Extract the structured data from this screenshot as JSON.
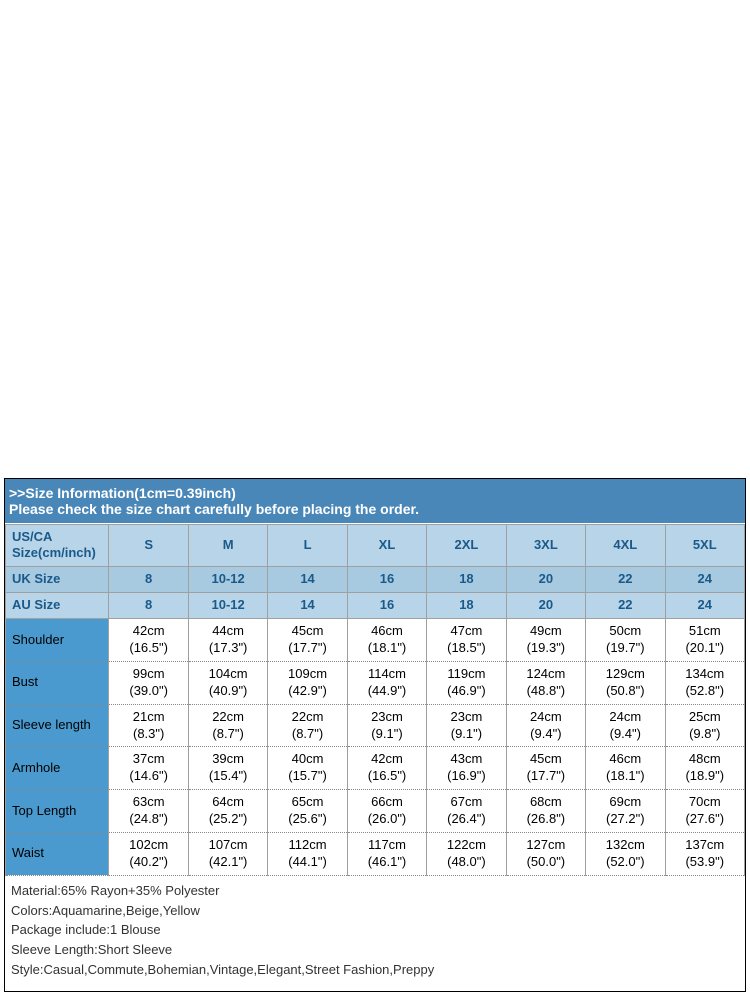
{
  "header": {
    "line1": ">>Size Information(1cm=0.39inch)",
    "line2": "Please check the size chart carefully before placing the order."
  },
  "sizes": [
    "S",
    "M",
    "L",
    "XL",
    "2XL",
    "3XL",
    "4XL",
    "5XL"
  ],
  "labelMain": "US/CA Size(cm/inch)",
  "labelUK": "UK Size",
  "labelAU": "AU Size",
  "uk": [
    "8",
    "10-12",
    "14",
    "16",
    "18",
    "20",
    "22",
    "24"
  ],
  "au": [
    "8",
    "10-12",
    "14",
    "16",
    "18",
    "20",
    "22",
    "24"
  ],
  "rows": [
    {
      "label": "Shoulder",
      "cm": [
        "42cm",
        "44cm",
        "45cm",
        "46cm",
        "47cm",
        "49cm",
        "50cm",
        "51cm"
      ],
      "in": [
        "(16.5\")",
        "(17.3\")",
        "(17.7\")",
        "(18.1\")",
        "(18.5\")",
        "(19.3\")",
        "(19.7\")",
        "(20.1\")"
      ]
    },
    {
      "label": "Bust",
      "cm": [
        "99cm",
        "104cm",
        "109cm",
        "114cm",
        "119cm",
        "124cm",
        "129cm",
        "134cm"
      ],
      "in": [
        "(39.0\")",
        "(40.9\")",
        "(42.9\")",
        "(44.9\")",
        "(46.9\")",
        "(48.8\")",
        "(50.8\")",
        "(52.8\")"
      ]
    },
    {
      "label": "Sleeve length",
      "cm": [
        "21cm",
        "22cm",
        "22cm",
        "23cm",
        "23cm",
        "24cm",
        "24cm",
        "25cm"
      ],
      "in": [
        "(8.3\")",
        "(8.7\")",
        "(8.7\")",
        "(9.1\")",
        "(9.1\")",
        "(9.4\")",
        "(9.4\")",
        "(9.8\")"
      ]
    },
    {
      "label": "Armhole",
      "cm": [
        "37cm",
        "39cm",
        "40cm",
        "42cm",
        "43cm",
        "45cm",
        "46cm",
        "48cm"
      ],
      "in": [
        "(14.6\")",
        "(15.4\")",
        "(15.7\")",
        "(16.5\")",
        "(16.9\")",
        "(17.7\")",
        "(18.1\")",
        "(18.9\")"
      ]
    },
    {
      "label": "Top Length",
      "cm": [
        "63cm",
        "64cm",
        "65cm",
        "66cm",
        "67cm",
        "68cm",
        "69cm",
        "70cm"
      ],
      "in": [
        "(24.8\")",
        "(25.2\")",
        "(25.6\")",
        "(26.0\")",
        "(26.4\")",
        "(26.8\")",
        "(27.2\")",
        "(27.6\")"
      ]
    },
    {
      "label": "Waist",
      "cm": [
        "102cm",
        "107cm",
        "112cm",
        "117cm",
        "122cm",
        "127cm",
        "132cm",
        "137cm"
      ],
      "in": [
        "(40.2\")",
        "(42.1\")",
        "(44.1\")",
        "(46.1\")",
        "(48.0\")",
        "(50.0\")",
        "(52.0\")",
        "(53.9\")"
      ]
    }
  ],
  "info": {
    "material": "Material:65% Rayon+35% Polyester",
    "colors": "Colors:Aquamarine,Beige,Yellow",
    "package": "Package include:1 Blouse",
    "sleeve": "Sleeve Length:Short Sleeve",
    "style": "Style:Casual,Commute,Bohemian,Vintage,Elegant,Street Fashion,Preppy"
  },
  "colors": {
    "headerBg": "#4a87b9",
    "headerText": "#ffffff",
    "headRowBg": "#b8d4e8",
    "headRowText": "#1a5a8a",
    "ukRowBg": "#a8cae0",
    "labelCellBg": "#4a9acf",
    "border": "#a0a0a0"
  }
}
